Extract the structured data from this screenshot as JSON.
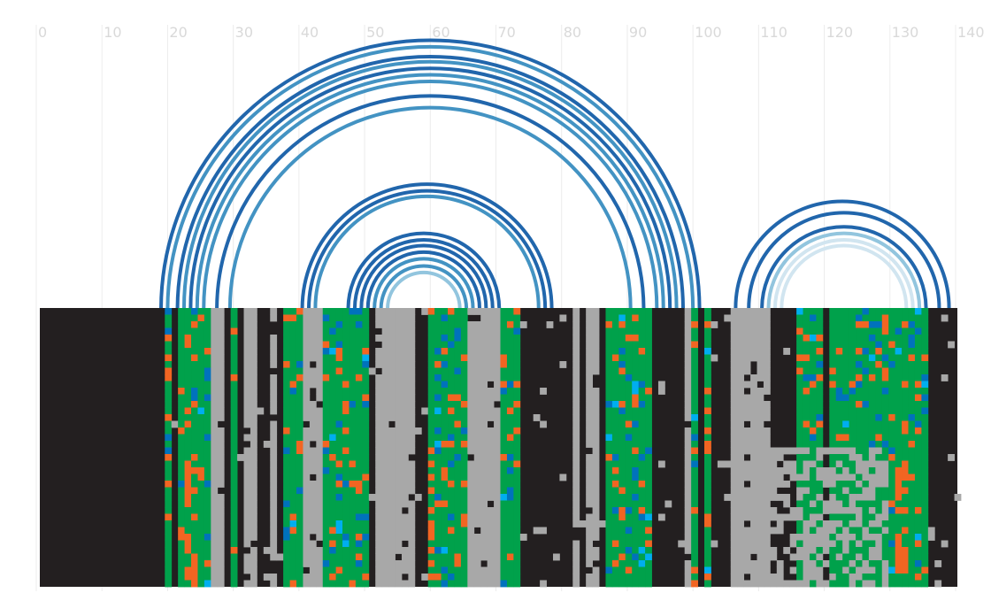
{
  "chart_data": {
    "type": "arc",
    "x_ticks": [
      "0",
      "10",
      "20",
      "30",
      "40",
      "50",
      "60",
      "70",
      "80",
      "90",
      "100",
      "110",
      "120",
      "130",
      "140"
    ],
    "xlim": [
      0,
      140
    ],
    "grid": "vertical",
    "arcs": [
      {
        "from": 19,
        "to": 101,
        "color": "#2166ac"
      },
      {
        "from": 20,
        "to": 100,
        "color": "#4393c3"
      },
      {
        "from": 21.5,
        "to": 98.5,
        "color": "#2166ac"
      },
      {
        "from": 22.5,
        "to": 97.5,
        "color": "#4393c3"
      },
      {
        "from": 23.5,
        "to": 96.5,
        "color": "#2166ac"
      },
      {
        "from": 24.5,
        "to": 95.5,
        "color": "#4393c3"
      },
      {
        "from": 25.5,
        "to": 94.5,
        "color": "#4393c3"
      },
      {
        "from": 27.5,
        "to": 92.5,
        "color": "#2166ac"
      },
      {
        "from": 29.5,
        "to": 90.5,
        "color": "#4393c3"
      },
      {
        "from": 40.5,
        "to": 78.5,
        "color": "#2166ac"
      },
      {
        "from": 41.5,
        "to": 77.5,
        "color": "#2166ac"
      },
      {
        "from": 42.5,
        "to": 76.5,
        "color": "#4393c3"
      },
      {
        "from": 47.5,
        "to": 70.5,
        "color": "#2166ac"
      },
      {
        "from": 48.5,
        "to": 69.5,
        "color": "#2166ac"
      },
      {
        "from": 49.5,
        "to": 68.5,
        "color": "#2166ac"
      },
      {
        "from": 50.5,
        "to": 67.5,
        "color": "#2166ac"
      },
      {
        "from": 51.5,
        "to": 66.5,
        "color": "#4393c3"
      },
      {
        "from": 52.5,
        "to": 65.5,
        "color": "#4393c3"
      },
      {
        "from": 53.5,
        "to": 64.5,
        "color": "#92c5de"
      },
      {
        "from": 106.5,
        "to": 139,
        "color": "#2166ac"
      },
      {
        "from": 108.5,
        "to": 137.5,
        "color": "#2166ac"
      },
      {
        "from": 110.5,
        "to": 135.5,
        "color": "#2166ac"
      },
      {
        "from": 111.5,
        "to": 134.5,
        "color": "#92c5de"
      },
      {
        "from": 112.5,
        "to": 133.5,
        "color": "#d1e5f0"
      },
      {
        "from": 113.5,
        "to": 132.5,
        "color": "#d1e5f0"
      }
    ],
    "alignment": {
      "columns": 140,
      "rows": 42,
      "colors": {
        "gap": "#231f20",
        "group_a": "#a8a8a8",
        "group_b": "#00a14b",
        "group_c": "#f26522",
        "group_d": "#0072bc",
        "group_e": "#00aeef"
      },
      "base_pattern": "GGGGGGGGGGGGGGGGGGGBKBBBBBAAKBKAAKKAKBBBAAABBBBBBBKAAAAAAKKBBBBBBAAAAABBBKKKKKKKKAKAAKBBBBBBBKKKKKABKBKKKAAAAAAKKKKBBBBKBBBBBBBBBBBBBBB"
    }
  }
}
